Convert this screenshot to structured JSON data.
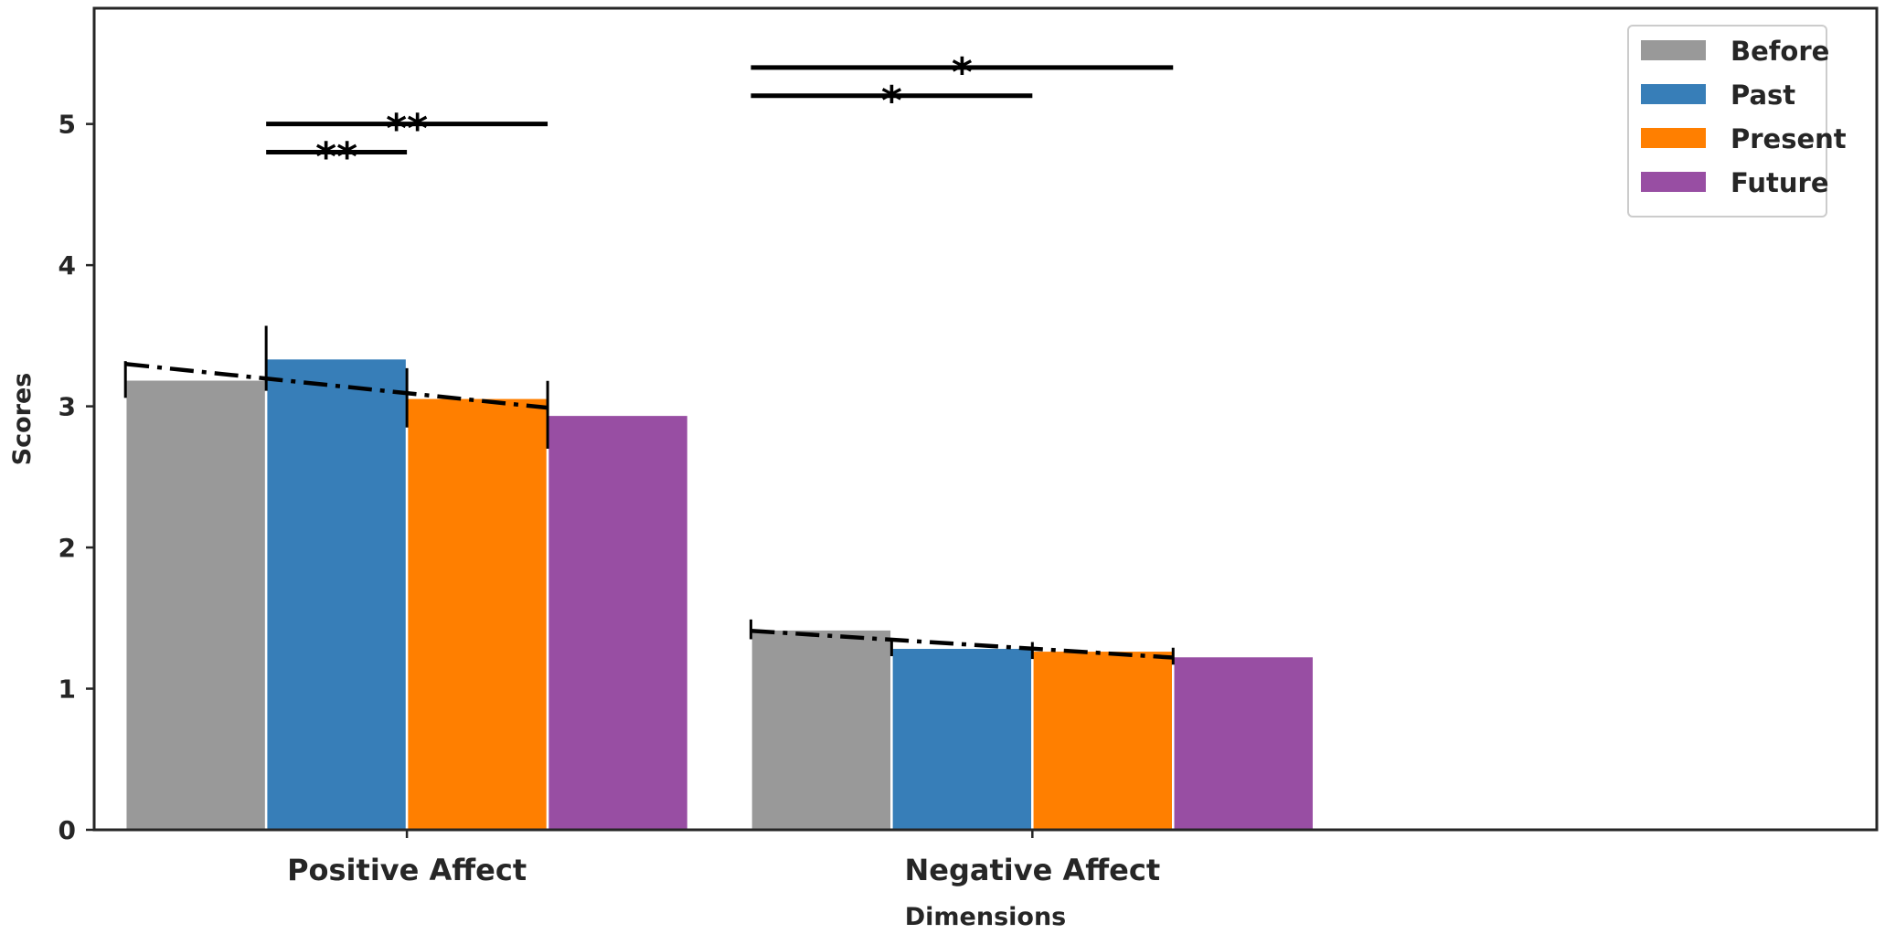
{
  "chart_data": {
    "type": "bar",
    "xlabel": "Dimensions",
    "ylabel": "Scores",
    "ylim": [
      0,
      5.82
    ],
    "yticks": [
      "0",
      "1",
      "2",
      "3",
      "4",
      "5"
    ],
    "categories": [
      "Positive Affect",
      "Negative Affect"
    ],
    "series": [
      {
        "name": "Before",
        "color": "#999999",
        "values": [
          3.19,
          1.42
        ],
        "errors": [
          0.13,
          0.07
        ]
      },
      {
        "name": "Past",
        "color": "#377eb8",
        "values": [
          3.34,
          1.29
        ],
        "errors": [
          0.23,
          0.06
        ]
      },
      {
        "name": "Present",
        "color": "#ff7f00",
        "values": [
          3.06,
          1.27
        ],
        "errors": [
          0.21,
          0.06
        ]
      },
      {
        "name": "Future",
        "color": "#984ea3",
        "values": [
          2.94,
          1.23
        ],
        "errors": [
          0.24,
          0.06
        ]
      }
    ],
    "trend_lines": [
      {
        "category": "Positive Affect",
        "start": 3.3,
        "end": 2.99,
        "style": "dash-dot"
      },
      {
        "category": "Negative Affect",
        "start": 1.41,
        "end": 1.22,
        "style": "dash-dot"
      }
    ],
    "significance": [
      {
        "category": "Positive Affect",
        "from_series": 1,
        "to_series": 2,
        "y": 4.8,
        "label": "**"
      },
      {
        "category": "Positive Affect",
        "from_series": 1,
        "to_series": 3,
        "y": 5.0,
        "label": "**"
      },
      {
        "category": "Negative Affect",
        "from_series": 0,
        "to_series": 2,
        "y": 5.2,
        "label": "*"
      },
      {
        "category": "Negative Affect",
        "from_series": 0,
        "to_series": 3,
        "y": 5.4,
        "label": "*"
      }
    ],
    "legend_placement": "top-right",
    "grid": false
  }
}
